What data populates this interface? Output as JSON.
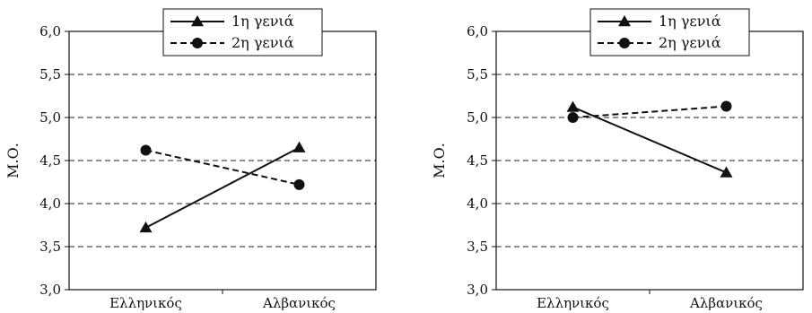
{
  "chart_data": [
    {
      "type": "line",
      "categories": [
        "Ελληνικός",
        "Αλβανικός"
      ],
      "ylabel": "Μ.Ο.",
      "xlabel": "",
      "ylim": [
        3.0,
        6.0
      ],
      "yticks": [
        "3,0",
        "3,5",
        "4,0",
        "4,5",
        "5,0",
        "5,5",
        "6,0"
      ],
      "grid": "horizontal-dashed",
      "legend_position": "top-right",
      "series": [
        {
          "name": "1η γενιά",
          "values": [
            3.72,
            4.65
          ],
          "style": "solid",
          "marker": "triangle",
          "color": "#111111"
        },
        {
          "name": "2η γενιά",
          "values": [
            4.62,
            4.22
          ],
          "style": "dashed",
          "marker": "circle",
          "color": "#111111"
        }
      ]
    },
    {
      "type": "line",
      "categories": [
        "Ελληνικός",
        "Αλβανικός"
      ],
      "ylabel": "Μ.Ο.",
      "xlabel": "",
      "ylim": [
        3.0,
        6.0
      ],
      "yticks": [
        "3,0",
        "3,5",
        "4,0",
        "4,5",
        "5,0",
        "5,5",
        "6,0"
      ],
      "grid": "horizontal-dashed",
      "legend_position": "top-right",
      "series": [
        {
          "name": "1η γενιά",
          "values": [
            5.12,
            4.36
          ],
          "style": "solid",
          "marker": "triangle",
          "color": "#111111"
        },
        {
          "name": "2η γενιά",
          "values": [
            5.0,
            5.13
          ],
          "style": "dashed",
          "marker": "circle",
          "color": "#111111"
        }
      ]
    }
  ]
}
